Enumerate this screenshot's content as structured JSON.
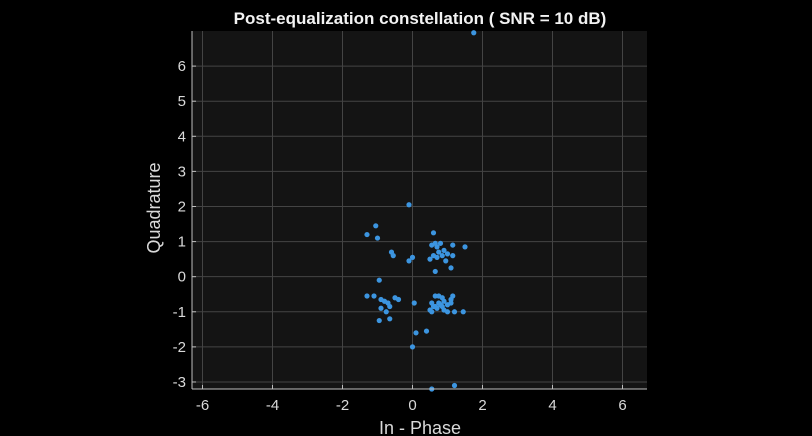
{
  "chart_data": {
    "type": "scatter",
    "title": "Post-equalization constellation ( SNR = 10 dB)",
    "xlabel": "In - Phase",
    "ylabel": "Quadrature",
    "xlim": [
      -6.3,
      6.7
    ],
    "ylim": [
      -3.2,
      7.0
    ],
    "xticks": [
      -6,
      -4,
      -2,
      0,
      2,
      4,
      6
    ],
    "yticks": [
      -3,
      -2,
      -1,
      0,
      1,
      2,
      3,
      4,
      5,
      6
    ],
    "xtick_labels": [
      "-6",
      "-4",
      "-2",
      "0",
      "2",
      "4",
      "6"
    ],
    "ytick_labels": [
      "-3",
      "-2",
      "-1",
      "0",
      "1",
      "2",
      "3",
      "4",
      "5",
      "6"
    ],
    "grid": true,
    "colors": {
      "figure_bg": "#000000",
      "axes_bg": "#141414",
      "grid": "#444444",
      "axis": "#bfbfbf",
      "marker": "#3c95e0"
    },
    "x": [
      1.75,
      -0.1,
      -1.3,
      -1.05,
      -1.0,
      -0.55,
      -0.6,
      -0.1,
      0.0,
      -0.95,
      -1.3,
      -1.1,
      -0.9,
      -0.8,
      -0.7,
      -0.5,
      -0.4,
      -0.65,
      -0.9,
      -0.75,
      -0.65,
      -0.95,
      0.05,
      0.1,
      0.0,
      0.4,
      0.55,
      1.2,
      0.6,
      0.65,
      0.55,
      0.7,
      0.8,
      0.9,
      1.15,
      0.5,
      0.6,
      0.75,
      0.7,
      0.85,
      0.95,
      1.1,
      0.65,
      1.0,
      1.15,
      1.5,
      0.65,
      0.75,
      0.85,
      0.9,
      1.0,
      1.1,
      1.15,
      0.55,
      0.6,
      0.7,
      0.8,
      0.85,
      0.9,
      1.0,
      1.1,
      1.2,
      1.45,
      0.5,
      0.55,
      0.65,
      0.75
    ],
    "y": [
      6.95,
      2.05,
      1.2,
      1.45,
      1.1,
      0.6,
      0.7,
      0.45,
      0.55,
      -0.1,
      -0.55,
      -0.55,
      -0.65,
      -0.7,
      -0.75,
      -0.6,
      -0.65,
      -0.85,
      -0.9,
      -1.0,
      -1.2,
      -1.25,
      -0.75,
      -1.6,
      -2.0,
      -1.55,
      -3.2,
      -3.1,
      1.25,
      0.95,
      0.9,
      0.85,
      0.95,
      0.75,
      0.9,
      0.5,
      0.6,
      0.7,
      0.55,
      0.6,
      0.45,
      0.25,
      0.15,
      0.65,
      0.6,
      0.85,
      -0.55,
      -0.55,
      -0.6,
      -0.7,
      -0.8,
      -0.65,
      -0.55,
      -0.75,
      -0.85,
      -0.9,
      -0.8,
      -0.85,
      -0.95,
      -1.0,
      -0.75,
      -1.0,
      -1.0,
      -0.95,
      -1.0,
      -0.85,
      -0.75
    ]
  }
}
